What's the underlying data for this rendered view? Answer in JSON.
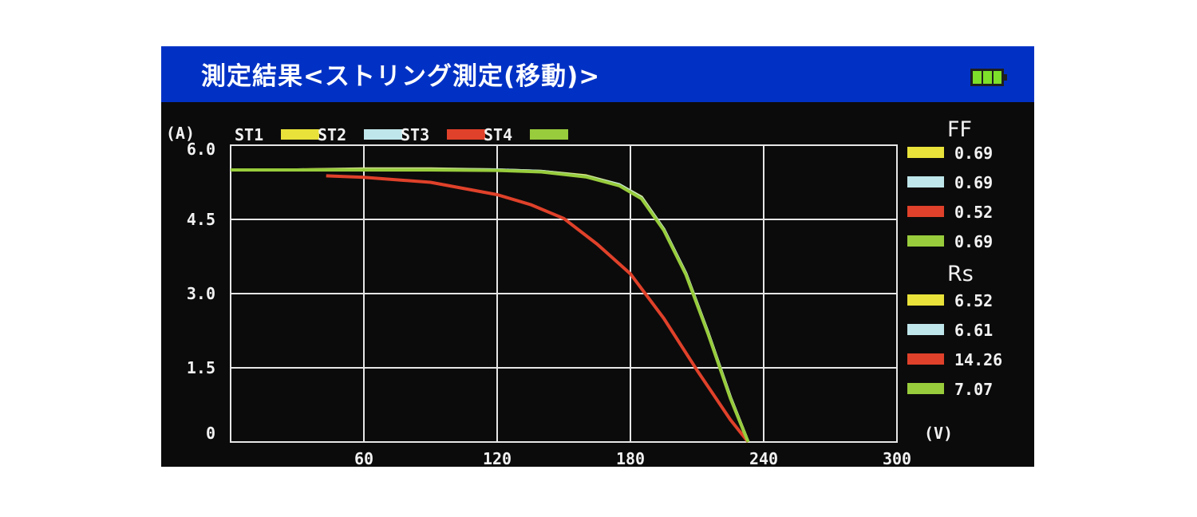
{
  "header": {
    "title": "測定結果<ストリング測定(移動)>",
    "battery_icon": "battery-full-icon"
  },
  "colors": {
    "header_bg": "#0131c4",
    "screen_bg": "#0c0b0b",
    "grid": "#e6e6e6",
    "text": "#f2f2f2"
  },
  "chart_data": {
    "type": "line",
    "xlabel": "(V)",
    "ylabel": "(A)",
    "xlim": [
      0,
      300
    ],
    "ylim": [
      0,
      6.0
    ],
    "x_ticks": [
      "60",
      "120",
      "180",
      "240",
      "300"
    ],
    "y_ticks": [
      "0",
      "1.5",
      "3.0",
      "4.5",
      "6.0"
    ],
    "grid": true,
    "legend_position": "top",
    "series": [
      {
        "name": "ST1",
        "color": "#e8e23a",
        "x": [
          0,
          30,
          60,
          90,
          120,
          140,
          160,
          175,
          185,
          195,
          205,
          215,
          225,
          233
        ],
        "y": [
          5.5,
          5.5,
          5.52,
          5.52,
          5.5,
          5.47,
          5.38,
          5.2,
          4.95,
          4.3,
          3.4,
          2.2,
          0.9,
          0
        ]
      },
      {
        "name": "ST2",
        "color": "#bfe6ea",
        "x": [
          0,
          30,
          60,
          90,
          120,
          140,
          160,
          175,
          185,
          195,
          205,
          215,
          225,
          233
        ],
        "y": [
          5.5,
          5.5,
          5.51,
          5.51,
          5.5,
          5.47,
          5.37,
          5.2,
          4.94,
          4.3,
          3.4,
          2.2,
          0.9,
          0
        ]
      },
      {
        "name": "ST3",
        "color": "#e0412a",
        "x": [
          43,
          60,
          90,
          120,
          135,
          150,
          165,
          180,
          195,
          210,
          225,
          233
        ],
        "y": [
          5.38,
          5.35,
          5.25,
          5.0,
          4.8,
          4.52,
          4.0,
          3.4,
          2.5,
          1.45,
          0.45,
          0
        ]
      },
      {
        "name": "ST4",
        "color": "#98cc3c",
        "x": [
          0,
          30,
          60,
          90,
          120,
          140,
          160,
          175,
          185,
          195,
          205,
          215,
          225,
          233
        ],
        "y": [
          5.5,
          5.5,
          5.5,
          5.5,
          5.49,
          5.46,
          5.36,
          5.18,
          4.92,
          4.28,
          3.38,
          2.18,
          0.88,
          0
        ]
      }
    ],
    "side_panel": {
      "ff_label": "FF",
      "ff_values": [
        "0.69",
        "0.69",
        "0.52",
        "0.69"
      ],
      "rs_label": "Rs",
      "rs_values": [
        "6.52",
        "6.61",
        "14.26",
        "7.07"
      ]
    }
  }
}
